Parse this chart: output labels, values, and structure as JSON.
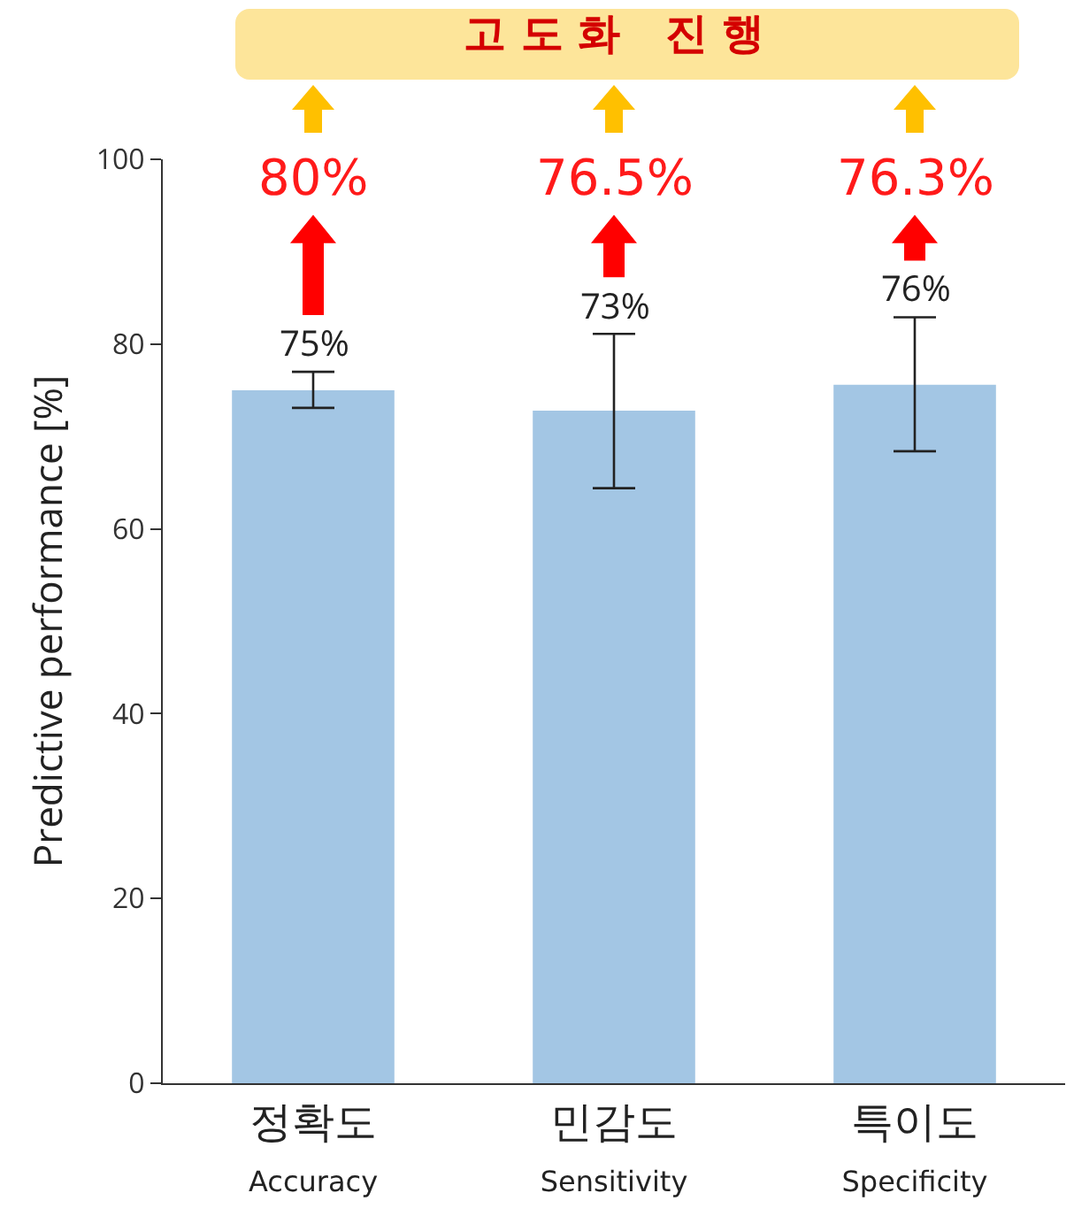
{
  "chart_data": {
    "type": "bar",
    "categories": [
      "정확도\nAccuracy",
      "민감도\nSensitivity",
      "특이도\nSpecificity"
    ],
    "values": [
      75,
      72.8,
      75.6
    ],
    "color": "#a3c6e4",
    "errors": [
      [
        73.1,
        77
      ],
      [
        64.4,
        81.1
      ],
      [
        68.4,
        82.9
      ]
    ],
    "value_labels": [
      "75%",
      "73%",
      "76%"
    ],
    "ylabel": "Predictive performance [%]",
    "ylim": [
      0,
      100
    ],
    "yticks": [
      0,
      20,
      40,
      60,
      80,
      100
    ],
    "grid": false,
    "annotations": [
      "80%",
      "76.5%",
      "76.3%",
      "고 도 화   진 행"
    ]
  }
}
